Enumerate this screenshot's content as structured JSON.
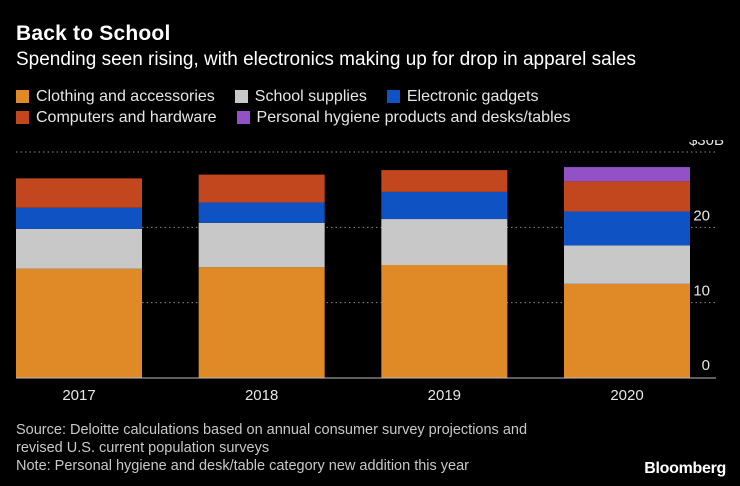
{
  "header": {
    "title": "Back to School",
    "subtitle": "Spending seen rising, with electronics making up for drop in apparel sales"
  },
  "colors": {
    "clothing": "#df8a27",
    "supplies": "#c8c8c8",
    "electronics": "#0f52c4",
    "computers": "#c2461e",
    "hygiene": "#9251c4"
  },
  "chart_data": {
    "type": "bar",
    "stacked": true,
    "categories": [
      "2017",
      "2018",
      "2019",
      "2020"
    ],
    "series": [
      {
        "name": "Clothing and accessories",
        "color_key": "clothing",
        "values": [
          14.5,
          14.7,
          15.0,
          12.5
        ]
      },
      {
        "name": "School supplies",
        "color_key": "supplies",
        "values": [
          5.3,
          5.9,
          6.1,
          5.1
        ]
      },
      {
        "name": "Electronic gadgets",
        "color_key": "electronics",
        "values": [
          2.8,
          2.7,
          3.6,
          4.5
        ]
      },
      {
        "name": "Computers and hardware",
        "color_key": "computers",
        "values": [
          3.9,
          3.7,
          2.9,
          4.0
        ]
      },
      {
        "name": "Personal hygiene products and desks/tables",
        "color_key": "hygiene",
        "values": [
          0,
          0,
          0,
          1.9
        ]
      }
    ],
    "title": "Back to School",
    "ylabel": "",
    "ylim": [
      0,
      30
    ],
    "y_ticks": [
      {
        "value": 0,
        "label": "0"
      },
      {
        "value": 10,
        "label": "10"
      },
      {
        "value": 20,
        "label": "20"
      },
      {
        "value": 30,
        "label": "$30B"
      }
    ],
    "grid": true,
    "legend_position": "top"
  },
  "footer": {
    "source_line1": "Source: Deloitte calculations based on annual consumer survey projections and",
    "source_line2": "revised U.S. current population surveys",
    "note": "Note: Personal hygiene and desk/table category new addition this year",
    "brand": "Bloomberg"
  }
}
